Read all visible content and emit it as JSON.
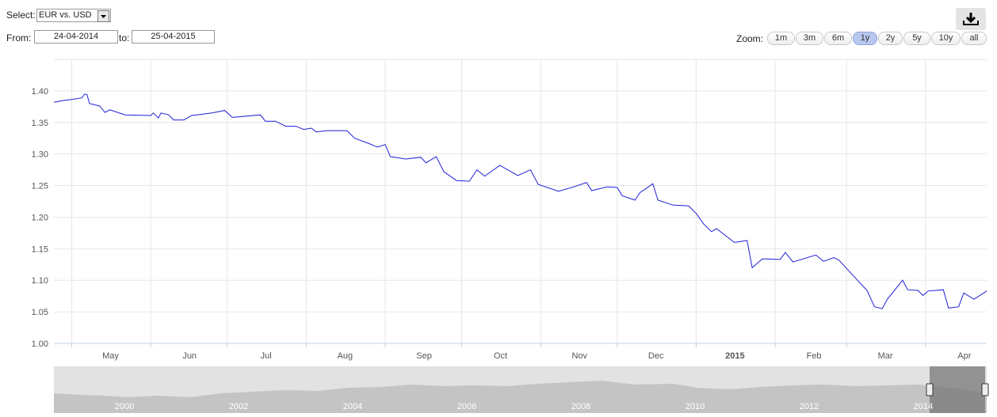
{
  "controls": {
    "select_label": "Select:",
    "select_value": "EUR vs. USD",
    "from_label": "From:",
    "from_value": "24-04-2014",
    "to_label": "to:",
    "to_value": "25-04-2015",
    "zoom_label": "Zoom:",
    "zoom_buttons": [
      "1m",
      "3m",
      "6m",
      "1y",
      "2y",
      "5y",
      "10y",
      "all"
    ],
    "zoom_selected": 3
  },
  "chart_data": {
    "type": "line",
    "color": "#1f1fd6",
    "grid": true,
    "xlim": [
      "2014-04-24",
      "2015-04-25"
    ],
    "xticks": [
      {
        "value": "2014-05-01",
        "label": "May"
      },
      {
        "value": "2014-06-01",
        "label": "Jun"
      },
      {
        "value": "2014-07-01",
        "label": "Jul"
      },
      {
        "value": "2014-08-01",
        "label": "Aug"
      },
      {
        "value": "2014-09-01",
        "label": "Sep"
      },
      {
        "value": "2014-10-01",
        "label": "Oct"
      },
      {
        "value": "2014-11-01",
        "label": "Nov"
      },
      {
        "value": "2014-12-01",
        "label": "Dec"
      },
      {
        "value": "2015-01-01",
        "label": "2015"
      },
      {
        "value": "2015-02-01",
        "label": "Feb"
      },
      {
        "value": "2015-03-01",
        "label": "Mar"
      },
      {
        "value": "2015-04-01",
        "label": "Apr"
      }
    ],
    "ylim": [
      1,
      1.45
    ],
    "yticks": [
      {
        "value": 1,
        "label": "1.00"
      },
      1.05,
      {
        "value": 1.1,
        "label": "1.10"
      },
      1.15,
      {
        "value": 1.2,
        "label": "1.20"
      },
      1.25,
      {
        "value": 1.3,
        "label": "1.30"
      },
      1.35,
      {
        "value": 1.4,
        "label": "1.40"
      }
    ],
    "x": [
      "2014-04-24",
      "2014-04-28",
      "2014-04-30",
      "2014-05-05",
      "2014-05-06",
      "2014-05-07",
      "2014-05-08",
      "2014-05-12",
      "2014-05-14",
      "2014-05-16",
      "2014-05-22",
      "2014-06-01",
      "2014-06-02",
      "2014-06-04",
      "2014-06-05",
      "2014-06-08",
      "2014-06-10",
      "2014-06-14",
      "2014-06-17",
      "2014-06-25",
      "2014-06-30",
      "2014-07-03",
      "2014-07-14",
      "2014-07-16",
      "2014-07-20",
      "2014-07-24",
      "2014-07-28",
      "2014-07-31",
      "2014-08-03",
      "2014-08-05",
      "2014-08-09",
      "2014-08-17",
      "2014-08-20",
      "2014-08-26",
      "2014-08-29",
      "2014-09-01",
      "2014-09-03",
      "2014-09-09",
      "2014-09-15",
      "2014-09-17",
      "2014-09-21",
      "2014-09-24",
      "2014-09-29",
      "2014-10-04",
      "2014-10-07",
      "2014-10-10",
      "2014-10-16",
      "2014-10-23",
      "2014-10-28",
      "2014-10-31",
      "2014-11-08",
      "2014-11-14",
      "2014-11-19",
      "2014-11-21",
      "2014-11-27",
      "2014-12-01",
      "2014-12-03",
      "2014-12-08",
      "2014-12-10",
      "2014-12-15",
      "2014-12-17",
      "2014-12-23",
      "2014-12-29",
      "2015-01-01",
      "2015-01-04",
      "2015-01-07",
      "2015-01-09",
      "2015-01-16",
      "2015-01-21",
      "2015-01-23",
      "2015-01-27",
      "2015-02-03",
      "2015-02-05",
      "2015-02-08",
      "2015-02-17",
      "2015-02-20",
      "2015-02-24",
      "2015-02-26",
      "2015-03-03",
      "2015-03-09",
      "2015-03-12",
      "2015-03-15",
      "2015-03-17",
      "2015-03-23",
      "2015-03-25",
      "2015-03-29",
      "2015-03-31",
      "2015-04-02",
      "2015-04-08",
      "2015-04-10",
      "2015-04-14",
      "2015-04-16",
      "2015-04-20",
      "2015-04-25"
    ],
    "values": [
      1.382,
      1.385,
      1.386,
      1.389,
      1.395,
      1.394,
      1.38,
      1.376,
      1.366,
      1.37,
      1.362,
      1.361,
      1.365,
      1.357,
      1.365,
      1.362,
      1.354,
      1.354,
      1.361,
      1.365,
      1.369,
      1.358,
      1.362,
      1.352,
      1.352,
      1.344,
      1.344,
      1.339,
      1.341,
      1.335,
      1.337,
      1.337,
      1.325,
      1.316,
      1.311,
      1.315,
      1.296,
      1.292,
      1.295,
      1.286,
      1.296,
      1.272,
      1.258,
      1.257,
      1.275,
      1.265,
      1.282,
      1.266,
      1.275,
      1.252,
      1.241,
      1.248,
      1.255,
      1.242,
      1.248,
      1.247,
      1.234,
      1.227,
      1.239,
      1.253,
      1.227,
      1.219,
      1.218,
      1.206,
      1.189,
      1.177,
      1.182,
      1.16,
      1.163,
      1.12,
      1.134,
      1.133,
      1.144,
      1.129,
      1.14,
      1.13,
      1.136,
      1.132,
      1.11,
      1.084,
      1.058,
      1.055,
      1.07,
      1.1,
      1.085,
      1.084,
      1.076,
      1.083,
      1.085,
      1.056,
      1.058,
      1.08,
      1.07,
      1.083
    ]
  },
  "navigator": {
    "labels": [
      "2000",
      "2002",
      "2004",
      "2006",
      "2008",
      "2010",
      "2012",
      "2014"
    ]
  }
}
